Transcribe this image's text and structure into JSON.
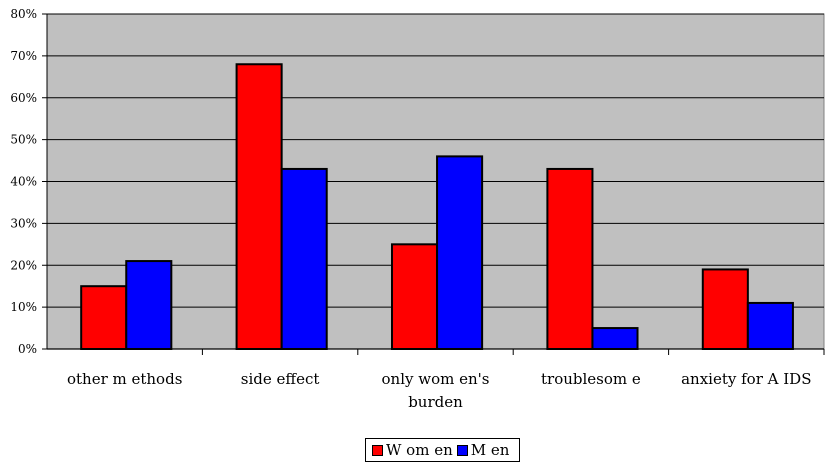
{
  "chart_data": {
    "type": "bar",
    "title": "",
    "xlabel": "",
    "ylabel": "",
    "categories": [
      "other m ethods",
      "side effect",
      "only wom en's",
      "troublesom e",
      "anxiety for A IDS"
    ],
    "category_lines": [
      [
        "other m ethods"
      ],
      [
        "side effect"
      ],
      [
        "only wom en's",
        "burden"
      ],
      [
        "troublesom e"
      ],
      [
        "anxiety for A IDS"
      ]
    ],
    "y_ticks": [
      "0%",
      "10%",
      "20%",
      "30%",
      "40%",
      "50%",
      "60%",
      "70%",
      "80%"
    ],
    "ylim": [
      0,
      80
    ],
    "grid": true,
    "legend_position": "bottom",
    "series": [
      {
        "name": "W om en",
        "color": "#ff0000",
        "values": [
          15,
          68,
          25,
          43,
          19
        ]
      },
      {
        "name": "M en",
        "color": "#0000ff",
        "values": [
          21,
          43,
          46,
          5,
          11
        ]
      }
    ],
    "plot_background": "#c0c0c0"
  }
}
